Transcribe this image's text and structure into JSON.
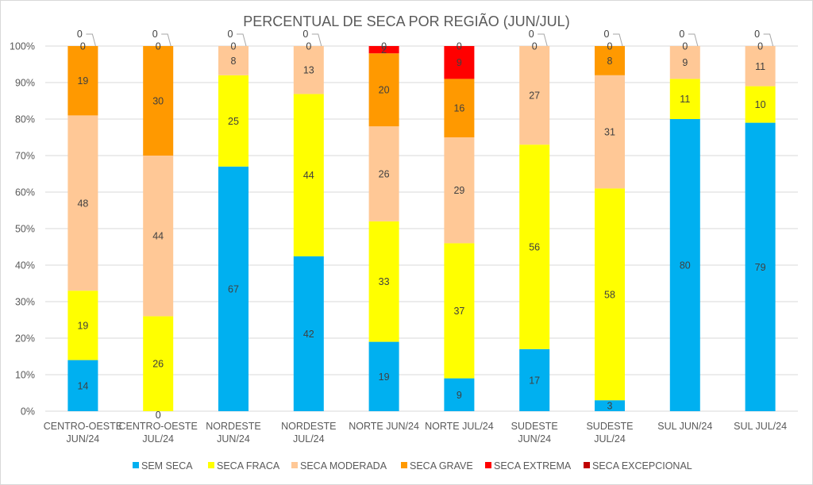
{
  "chart_data": {
    "type": "bar",
    "stacked": true,
    "percent_stacked": true,
    "title": "PERCENTUAL DE SECA POR REGIÃO (JUN/JUL)",
    "xlabel": "",
    "ylabel": "",
    "ylim": [
      0,
      100
    ],
    "yticks": [
      "0%",
      "10%",
      "20%",
      "30%",
      "40%",
      "50%",
      "60%",
      "70%",
      "80%",
      "90%",
      "100%"
    ],
    "grid": true,
    "legend_position": "bottom",
    "categories": [
      [
        "CENTRO-OESTE",
        "JUN/24"
      ],
      [
        "CENTRO-OESTE",
        "JUL/24"
      ],
      [
        "NORDESTE",
        "JUN/24"
      ],
      [
        "NORDESTE",
        "JUL/24"
      ],
      [
        "NORTE JUN/24"
      ],
      [
        "NORTE JUL/24"
      ],
      [
        "SUDESTE",
        "JUN/24"
      ],
      [
        "SUDESTE",
        "JUL/24"
      ],
      [
        "SUL JUN/24"
      ],
      [
        "SUL JUL/24"
      ]
    ],
    "series": [
      {
        "name": "SEM SECA",
        "color": "#00B0F0",
        "values": [
          14,
          0,
          67,
          42,
          19,
          9,
          17,
          3,
          80,
          79
        ]
      },
      {
        "name": "SECA FRACA",
        "color": "#FFFF00",
        "values": [
          19,
          26,
          25,
          44,
          33,
          37,
          56,
          58,
          11,
          10
        ]
      },
      {
        "name": "SECA MODERADA",
        "color": "#FFC896",
        "values": [
          48,
          44,
          8,
          13,
          26,
          29,
          27,
          31,
          9,
          11
        ]
      },
      {
        "name": "SECA GRAVE",
        "color": "#FF9900",
        "values": [
          19,
          30,
          0,
          0,
          20,
          16,
          0,
          8,
          0,
          0
        ]
      },
      {
        "name": "SECA EXTREMA",
        "color": "#FF0000",
        "values": [
          0,
          0,
          0,
          0,
          2,
          9,
          0,
          0,
          0,
          0
        ]
      },
      {
        "name": "SECA EXCEPCIONAL",
        "color": "#C00000",
        "values": [
          0,
          0,
          0,
          0,
          0,
          0,
          0,
          0,
          0,
          0
        ]
      }
    ]
  }
}
